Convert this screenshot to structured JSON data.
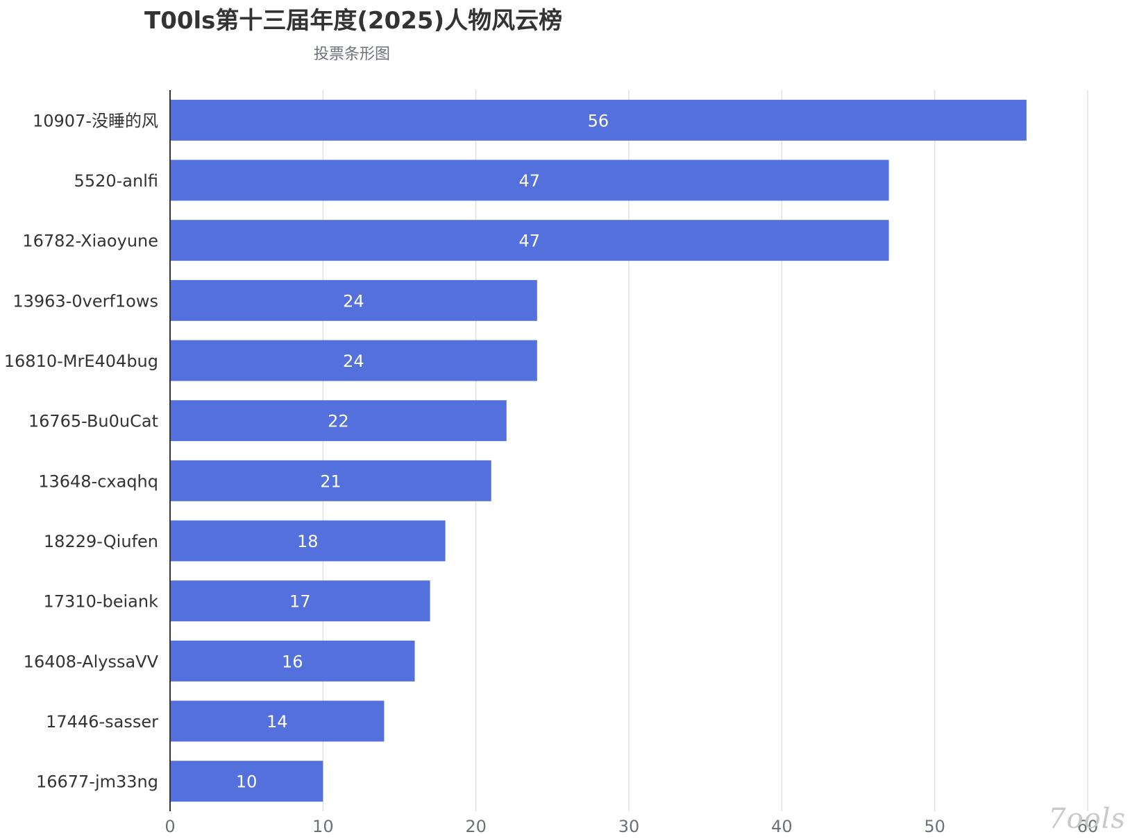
{
  "title": "T00ls第十三届年度(2025)人物风云榜",
  "subtitle": "投票条形图",
  "watermark": "7ools",
  "colors": {
    "bar": "#5470dc",
    "grid": "#e0e0e0",
    "axis": "#333333",
    "value_text": "#ffffff"
  },
  "chart_data": {
    "type": "bar",
    "orientation": "horizontal",
    "categories": [
      "10907-没睡的风",
      "5520-anlfi",
      "16782-Xiaoyune",
      "13963-0verf1ows",
      "16810-MrE404bug",
      "16765-Bu0uCat",
      "13648-cxaqhq",
      "18229-Qiufen",
      "17310-beiank",
      "16408-AlyssaVV",
      "17446-sasser",
      "16677-jm33ng"
    ],
    "values": [
      56,
      47,
      47,
      24,
      24,
      22,
      21,
      18,
      17,
      16,
      14,
      10
    ],
    "x_ticks": [
      0,
      10,
      20,
      30,
      40,
      50,
      60
    ],
    "xlim": [
      0,
      60
    ],
    "grid": true,
    "data_labels": true
  }
}
